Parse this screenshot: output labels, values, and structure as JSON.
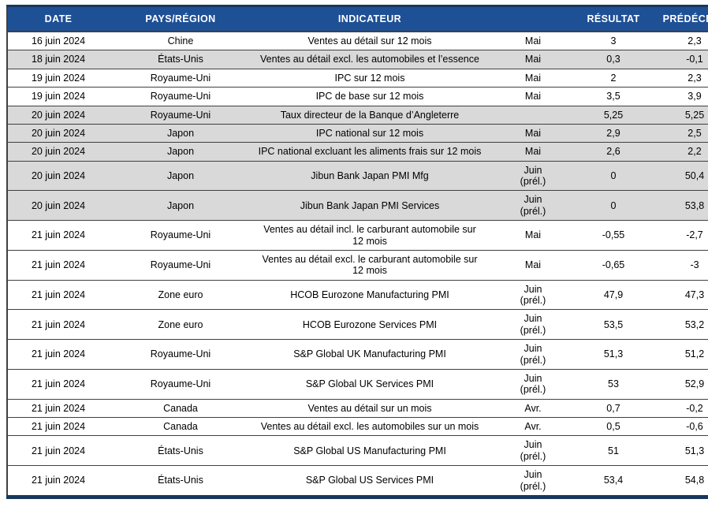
{
  "colors": {
    "header_bg": "#1E5096",
    "header_text": "#FFFFFF",
    "shaded_row_bg": "#D9D9D9",
    "row_border": "#404040",
    "bottom_bar": "#17375E",
    "body_text": "#000000"
  },
  "table": {
    "columns": [
      {
        "key": "date",
        "label": "DATE"
      },
      {
        "key": "region",
        "label": "PAYS/RÉGION"
      },
      {
        "key": "indicator",
        "label": "INDICATEUR"
      },
      {
        "key": "period",
        "label": ""
      },
      {
        "key": "result",
        "label": "RÉSULTAT"
      },
      {
        "key": "previous",
        "label": "PRÉDÉCENT"
      }
    ],
    "rows": [
      {
        "date": "16 juin 2024",
        "region": "Chine",
        "indicator": "Ventes au détail sur 12 mois",
        "period": "Mai",
        "result": "3",
        "previous": "2,3",
        "shaded": false
      },
      {
        "date": "18 juin 2024",
        "region": "États-Unis",
        "indicator": "Ventes au détail excl. les automobiles et l’essence",
        "period": "Mai",
        "result": "0,3",
        "previous": "-0,1",
        "shaded": true
      },
      {
        "date": "19 juin 2024",
        "region": "Royaume-Uni",
        "indicator": "IPC sur 12 mois",
        "period": "Mai",
        "result": "2",
        "previous": "2,3",
        "shaded": false
      },
      {
        "date": "19 juin 2024",
        "region": "Royaume-Uni",
        "indicator": "IPC de base sur 12 mois",
        "period": "Mai",
        "result": "3,5",
        "previous": "3,9",
        "shaded": false
      },
      {
        "date": "20 juin 2024",
        "region": "Royaume-Uni",
        "indicator": "Taux directeur de la Banque d’Angleterre",
        "period": "",
        "result": "5,25",
        "previous": "5,25",
        "shaded": true
      },
      {
        "date": "20 juin 2024",
        "region": "Japon",
        "indicator": "IPC national sur 12 mois",
        "period": "Mai",
        "result": "2,9",
        "previous": "2,5",
        "shaded": true
      },
      {
        "date": "20 juin 2024",
        "region": "Japon",
        "indicator": "IPC national excluant les aliments frais sur 12 mois",
        "period": "Mai",
        "result": "2,6",
        "previous": "2,2",
        "shaded": true
      },
      {
        "date": "20 juin 2024",
        "region": "Japon",
        "indicator": "Jibun Bank Japan PMI Mfg",
        "period": "Juin\n(prél.)",
        "result": "0",
        "previous": "50,4",
        "shaded": true
      },
      {
        "date": "20 juin 2024",
        "region": "Japon",
        "indicator": "Jibun Bank Japan PMI Services",
        "period": "Juin\n(prél.)",
        "result": "0",
        "previous": "53,8",
        "shaded": true
      },
      {
        "date": "21 juin 2024",
        "region": "Royaume-Uni",
        "indicator": "Ventes au détail incl. le carburant automobile sur 12 mois",
        "period": "Mai",
        "result": "-0,55",
        "previous": "-2,7",
        "shaded": false
      },
      {
        "date": "21 juin 2024",
        "region": "Royaume-Uni",
        "indicator": "Ventes au détail excl. le carburant automobile sur 12 mois",
        "period": "Mai",
        "result": "-0,65",
        "previous": "-3",
        "shaded": false
      },
      {
        "date": "21 juin 2024",
        "region": "Zone euro",
        "indicator": "HCOB Eurozone Manufacturing PMI",
        "period": "Juin\n(prél.)",
        "result": "47,9",
        "previous": "47,3",
        "shaded": false
      },
      {
        "date": "21 juin 2024",
        "region": "Zone euro",
        "indicator": "HCOB Eurozone Services PMI",
        "period": "Juin\n(prél.)",
        "result": "53,5",
        "previous": "53,2",
        "shaded": false
      },
      {
        "date": "21 juin 2024",
        "region": "Royaume-Uni",
        "indicator": "S&P Global UK Manufacturing PMI",
        "period": "Juin\n(prél.)",
        "result": "51,3",
        "previous": "51,2",
        "shaded": false
      },
      {
        "date": "21 juin 2024",
        "region": "Royaume-Uni",
        "indicator": "S&P Global UK Services PMI",
        "period": "Juin\n(prél.)",
        "result": "53",
        "previous": "52,9",
        "shaded": false
      },
      {
        "date": "21 juin 2024",
        "region": "Canada",
        "indicator": "Ventes au détail sur un mois",
        "period": "Avr.",
        "result": "0,7",
        "previous": "-0,2",
        "shaded": false
      },
      {
        "date": "21 juin 2024",
        "region": "Canada",
        "indicator": "Ventes au détail excl. les automobiles sur un mois",
        "period": "Avr.",
        "result": "0,5",
        "previous": "-0,6",
        "shaded": false
      },
      {
        "date": "21 juin 2024",
        "region": "États-Unis",
        "indicator": "S&P Global US Manufacturing PMI",
        "period": "Juin\n(prél.)",
        "result": "51",
        "previous": "51,3",
        "shaded": false
      },
      {
        "date": "21 juin 2024",
        "region": "États-Unis",
        "indicator": "S&P Global US Services PMI",
        "period": "Juin\n(prél.)",
        "result": "53,4",
        "previous": "54,8",
        "shaded": false
      }
    ]
  }
}
